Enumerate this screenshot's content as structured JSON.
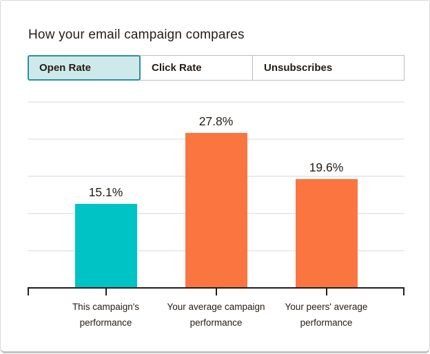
{
  "title": "How your email campaign compares",
  "tabs": [
    {
      "label": "Open Rate",
      "active": true
    },
    {
      "label": "Click Rate",
      "active": false
    },
    {
      "label": "Unsubscribes",
      "active": false
    }
  ],
  "chart_data": {
    "type": "bar",
    "metric": "Open Rate",
    "title": "How your email campaign compares",
    "categories": [
      "This campaign's performance",
      "Your average campaign performance",
      "Your peers' average performance"
    ],
    "category_lines": [
      [
        "This campaign's",
        "performance"
      ],
      [
        "Your average campaign",
        "performance"
      ],
      [
        "Your peers' average",
        "performance"
      ]
    ],
    "values": [
      15.1,
      27.8,
      19.6
    ],
    "value_labels": [
      "15.1%",
      "27.8%",
      "19.6%"
    ],
    "bar_colors": [
      "#00c3c6",
      "#fb7540",
      "#fb7540"
    ],
    "ylim": [
      0,
      33.4
    ],
    "gridline_count": 5,
    "grid": true,
    "legend": "none",
    "xlabel": "",
    "ylabel": ""
  },
  "colors": {
    "teal_bar": "#00c3c6",
    "orange_bar": "#fb7540",
    "active_tab_bg": "#cee9ea",
    "active_tab_border": "#2b8f99",
    "axis": "#241c15",
    "gridline": "#ebebeb",
    "text": "#241c15"
  }
}
